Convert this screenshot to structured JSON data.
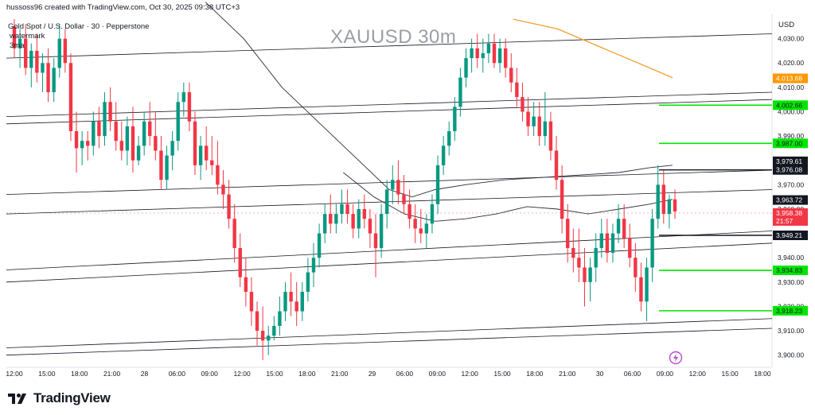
{
  "header": {
    "attribution": "hussoss96 created with TradingView.com, Oct 30, 2025 09:38 UTC+3",
    "symbol_info": "Gold Spot / U.S. Dollar · 30 · Pepperstone",
    "watermark": "watermark",
    "ma_label": "3ma",
    "big_title": "XAUUSD 30m",
    "currency": "USD"
  },
  "footer": {
    "logo_text": "TradingView",
    "logo_icon": "tradingview-logo-icon"
  },
  "colors": {
    "up": "#089981",
    "down": "#f23645",
    "guide": "#131722",
    "level": "#00e600",
    "ma_orange": "#f0a030",
    "ma_dark": "#2a2e39",
    "label_orange": "#ff9800",
    "label_red": "#f23645"
  },
  "chart_data": {
    "type": "candlestick",
    "symbol": "XAUUSD",
    "timeframe": "30m",
    "ylim": [
      3895,
      4040
    ],
    "y_ticks": [
      3900,
      3910,
      3920,
      3930,
      3940,
      3950,
      3960,
      3970,
      3980,
      3990,
      4000,
      4010,
      4020,
      4030
    ],
    "y_tick_labels": [
      "3,900.00",
      "3,910.00",
      "3,920.00",
      "3,930.00",
      "3,940.00",
      "3,950.00",
      "3,960.00",
      "3,970.00",
      "3,980.00",
      "3,990.00",
      "4,000.00",
      "4,010.00",
      "4,020.00",
      "4,030.00"
    ],
    "x_labels": [
      "12:00",
      "15:00",
      "18:00",
      "21:00",
      "28",
      "06:00",
      "09:00",
      "12:00",
      "15:00",
      "18:00",
      "21:00",
      "29",
      "06:00",
      "09:00",
      "12:00",
      "15:00",
      "18:00",
      "21:00",
      "30",
      "06:00",
      "09:00",
      "12:00",
      "15:00",
      "18:00"
    ],
    "candles": [
      [
        4035,
        4038,
        4022,
        4026
      ],
      [
        4026,
        4034,
        4018,
        4030
      ],
      [
        4030,
        4036,
        4015,
        4018
      ],
      [
        4018,
        4028,
        4010,
        4025
      ],
      [
        4025,
        4032,
        4012,
        4016
      ],
      [
        4016,
        4024,
        4008,
        4020
      ],
      [
        4020,
        4026,
        4004,
        4008
      ],
      [
        4008,
        4022,
        4004,
        4018
      ],
      [
        4018,
        4036,
        4014,
        4030
      ],
      [
        4030,
        4034,
        4016,
        4020
      ],
      [
        4020,
        4024,
        3988,
        3992
      ],
      [
        3992,
        4000,
        3975,
        3985
      ],
      [
        3985,
        3992,
        3978,
        3988
      ],
      [
        3988,
        3992,
        3980,
        3986
      ],
      [
        3986,
        4000,
        3982,
        3996
      ],
      [
        3996,
        4002,
        3985,
        3990
      ],
      [
        3990,
        4008,
        3986,
        4004
      ],
      [
        4004,
        4010,
        3992,
        3996
      ],
      [
        3996,
        4004,
        3984,
        3988
      ],
      [
        3988,
        3996,
        3980,
        3984
      ],
      [
        3984,
        3998,
        3978,
        3994
      ],
      [
        3994,
        4002,
        3975,
        3980
      ],
      [
        3980,
        3990,
        3978,
        3986
      ],
      [
        3986,
        4000,
        3982,
        3996
      ],
      [
        3996,
        4004,
        3986,
        3990
      ],
      [
        3990,
        4000,
        3980,
        3984
      ],
      [
        3984,
        3990,
        3968,
        3972
      ],
      [
        3972,
        3986,
        3968,
        3982
      ],
      [
        3982,
        3992,
        3976,
        3988
      ],
      [
        3988,
        4008,
        3984,
        4004
      ],
      [
        4004,
        4012,
        3998,
        4008
      ],
      [
        4008,
        4012,
        3992,
        3996
      ],
      [
        3996,
        4000,
        3974,
        3978
      ],
      [
        3978,
        3990,
        3972,
        3986
      ],
      [
        3986,
        3994,
        3976,
        3980
      ],
      [
        3980,
        3990,
        3974,
        3978
      ],
      [
        3978,
        3988,
        3966,
        3970
      ],
      [
        3970,
        3976,
        3960,
        3966
      ],
      [
        3966,
        3972,
        3952,
        3956
      ],
      [
        3956,
        3962,
        3938,
        3944
      ],
      [
        3944,
        3950,
        3928,
        3932
      ],
      [
        3932,
        3940,
        3920,
        3926
      ],
      [
        3926,
        3932,
        3912,
        3918
      ],
      [
        3918,
        3922,
        3904,
        3910
      ],
      [
        3910,
        3920,
        3898,
        3906
      ],
      [
        3906,
        3912,
        3900,
        3908
      ],
      [
        3908,
        3916,
        3906,
        3912
      ],
      [
        3912,
        3924,
        3908,
        3918
      ],
      [
        3918,
        3930,
        3914,
        3926
      ],
      [
        3926,
        3934,
        3916,
        3922
      ],
      [
        3922,
        3930,
        3912,
        3918
      ],
      [
        3918,
        3930,
        3914,
        3926
      ],
      [
        3926,
        3940,
        3922,
        3934
      ],
      [
        3934,
        3946,
        3928,
        3940
      ],
      [
        3940,
        3954,
        3936,
        3950
      ],
      [
        3950,
        3962,
        3946,
        3958
      ],
      [
        3958,
        3966,
        3950,
        3954
      ],
      [
        3954,
        3962,
        3950,
        3958
      ],
      [
        3958,
        3968,
        3954,
        3962
      ],
      [
        3962,
        3968,
        3954,
        3958
      ],
      [
        3958,
        3962,
        3948,
        3952
      ],
      [
        3952,
        3964,
        3948,
        3960
      ],
      [
        3960,
        3966,
        3952,
        3956
      ],
      [
        3956,
        3960,
        3944,
        3950
      ],
      [
        3950,
        3958,
        3932,
        3944
      ],
      [
        3944,
        3962,
        3940,
        3958
      ],
      [
        3958,
        3972,
        3952,
        3968
      ],
      [
        3968,
        3978,
        3962,
        3972
      ],
      [
        3972,
        3980,
        3962,
        3966
      ],
      [
        3966,
        3974,
        3958,
        3962
      ],
      [
        3962,
        3968,
        3952,
        3956
      ],
      [
        3956,
        3962,
        3946,
        3952
      ],
      [
        3952,
        3960,
        3946,
        3950
      ],
      [
        3950,
        3958,
        3944,
        3954
      ],
      [
        3954,
        3966,
        3950,
        3962
      ],
      [
        3962,
        3982,
        3958,
        3978
      ],
      [
        3978,
        3990,
        3974,
        3986
      ],
      [
        3986,
        3996,
        3982,
        3992
      ],
      [
        3992,
        4006,
        3988,
        4002
      ],
      [
        4002,
        4018,
        3998,
        4014
      ],
      [
        4014,
        4026,
        4010,
        4022
      ],
      [
        4022,
        4030,
        4016,
        4026
      ],
      [
        4026,
        4032,
        4018,
        4022
      ],
      [
        4022,
        4030,
        4016,
        4024
      ],
      [
        4024,
        4032,
        4020,
        4028
      ],
      [
        4028,
        4032,
        4018,
        4020
      ],
      [
        4020,
        4030,
        4016,
        4026
      ],
      [
        4026,
        4030,
        4014,
        4018
      ],
      [
        4018,
        4024,
        4008,
        4012
      ],
      [
        4012,
        4018,
        4002,
        4006
      ],
      [
        4006,
        4012,
        3996,
        4000
      ],
      [
        4000,
        4006,
        3990,
        3994
      ],
      [
        3994,
        4004,
        3990,
        3998
      ],
      [
        3998,
        4004,
        3986,
        3990
      ],
      [
        3990,
        4008,
        3986,
        3996
      ],
      [
        3996,
        4000,
        3980,
        3984
      ],
      [
        3984,
        3990,
        3968,
        3972
      ],
      [
        3972,
        3978,
        3950,
        3956
      ],
      [
        3956,
        3962,
        3938,
        3944
      ],
      [
        3944,
        3952,
        3934,
        3940
      ],
      [
        3940,
        3952,
        3930,
        3936
      ],
      [
        3936,
        3944,
        3920,
        3930
      ],
      [
        3930,
        3940,
        3922,
        3936
      ],
      [
        3936,
        3950,
        3930,
        3944
      ],
      [
        3944,
        3956,
        3940,
        3950
      ],
      [
        3950,
        3956,
        3938,
        3942
      ],
      [
        3942,
        3954,
        3938,
        3950
      ],
      [
        3950,
        3962,
        3946,
        3956
      ],
      [
        3956,
        3962,
        3944,
        3948
      ],
      [
        3948,
        3954,
        3936,
        3940
      ],
      [
        3940,
        3946,
        3926,
        3932
      ],
      [
        3932,
        3938,
        3918,
        3922
      ],
      [
        3922,
        3940,
        3914,
        3936
      ],
      [
        3936,
        3960,
        3930,
        3956
      ],
      [
        3956,
        3978,
        3952,
        3970
      ],
      [
        3970,
        3976,
        3954,
        3958
      ],
      [
        3958,
        3966,
        3952,
        3964
      ],
      [
        3964,
        3968,
        3956,
        3959
      ]
    ],
    "trend_lines": [
      [
        [
          0,
          4022
        ],
        [
          1,
          4032
        ]
      ],
      [
        [
          0,
          3998
        ],
        [
          1,
          4008
        ]
      ],
      [
        [
          0,
          3995
        ],
        [
          1,
          4005
        ]
      ],
      [
        [
          0,
          3966
        ],
        [
          1,
          3976
        ]
      ],
      [
        [
          0,
          3958
        ],
        [
          1,
          3968
        ]
      ],
      [
        [
          0,
          3935
        ],
        [
          1,
          3951
        ]
      ],
      [
        [
          0,
          3930
        ],
        [
          1,
          3946
        ]
      ],
      [
        [
          0,
          3903
        ],
        [
          1,
          3915
        ]
      ],
      [
        [
          0,
          3900
        ],
        [
          1,
          3911
        ]
      ]
    ],
    "horizontal_levels": [
      {
        "value": 4002.66,
        "label": "4,002.66",
        "style": "green"
      },
      {
        "value": 3987.0,
        "label": "3,987.00",
        "style": "green"
      },
      {
        "value": 3976.08,
        "label": "3,976.08",
        "style": "black"
      },
      {
        "value": 3949.21,
        "label": "3,949.21",
        "style": "black"
      },
      {
        "value": 3934.83,
        "label": "3,934.83",
        "style": "green"
      },
      {
        "value": 3918.23,
        "label": "3,918.23",
        "style": "green"
      }
    ],
    "price_labels": [
      {
        "value": 4013.68,
        "label": "4,013.68",
        "style": "orange"
      },
      {
        "value": 3979.61,
        "label": "3,979.61",
        "style": "black"
      },
      {
        "value": 3963.72,
        "label": "3,963.72",
        "style": "black"
      },
      {
        "value": 3958.38,
        "label": "3,958.38",
        "sub": "21:57",
        "style": "red"
      }
    ],
    "moving_averages": [
      {
        "color": "orange",
        "points": [
          [
            0.662,
            4038
          ],
          [
            0.72,
            4034
          ],
          [
            0.78,
            4026
          ],
          [
            0.87,
            4014
          ]
        ]
      },
      {
        "color": "dark",
        "points": [
          [
            0.26,
            4045
          ],
          [
            0.31,
            4030
          ],
          [
            0.36,
            4010
          ],
          [
            0.41,
            3995
          ],
          [
            0.46,
            3980
          ],
          [
            0.5,
            3968
          ],
          [
            0.53,
            3965
          ],
          [
            0.56,
            3968
          ],
          [
            0.6,
            3970
          ],
          [
            0.65,
            3972
          ],
          [
            0.7,
            3973
          ],
          [
            0.75,
            3974
          ],
          [
            0.8,
            3975
          ],
          [
            0.84,
            3977
          ],
          [
            0.87,
            3978
          ]
        ]
      },
      {
        "color": "dark",
        "points": [
          [
            0.44,
            3975
          ],
          [
            0.48,
            3965
          ],
          [
            0.52,
            3958
          ],
          [
            0.56,
            3955
          ],
          [
            0.6,
            3956
          ],
          [
            0.64,
            3958
          ],
          [
            0.68,
            3961
          ],
          [
            0.72,
            3960
          ],
          [
            0.76,
            3958
          ],
          [
            0.8,
            3960
          ],
          [
            0.84,
            3962
          ],
          [
            0.87,
            3964
          ]
        ]
      }
    ]
  }
}
